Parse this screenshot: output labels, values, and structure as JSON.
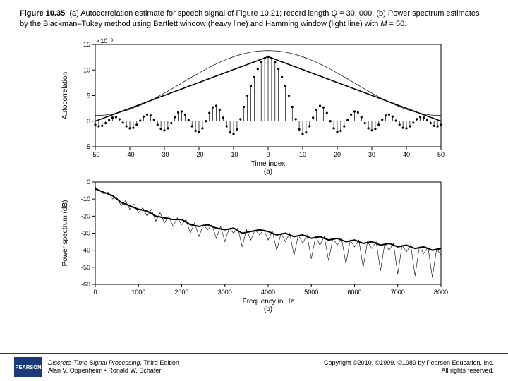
{
  "caption": {
    "label": "Figure 10.35",
    "text_a": "(a) Autocorrelation estimate for speech signal of Figure 10.21; record length ",
    "Q_var": "Q",
    "Q_eq": " = 30, 000. (b) Power spectrum estimates by the Blackman–Tukey method using Bartlett window (heavy line) and Hamming window (light line) with ",
    "M_var": "M",
    "M_eq": " = 50."
  },
  "plot_a": {
    "type": "stem-plus-curves",
    "xlabel": "Time index",
    "sublabel": "(a)",
    "ylabel": "Autocorrelation",
    "y_scale_text": "×10⁻³",
    "xlim": [
      -50,
      50
    ],
    "ylim": [
      -5,
      15
    ],
    "xticks": [
      -50,
      -40,
      -30,
      -20,
      -10,
      0,
      10,
      20,
      30,
      40,
      50
    ],
    "yticks": [
      -5,
      0,
      5,
      10,
      15
    ],
    "background_color": "#ffffff",
    "axis_color": "#000000",
    "stem_color": "#000000",
    "marker_color": "#000000",
    "marker_size": 1.6,
    "hamming_color": "#000000",
    "hamming_width": 0.7,
    "bartlett_color": "#000000",
    "bartlett_width": 1.6,
    "stem_values": [
      -0.7,
      -1.0,
      -0.9,
      -0.4,
      0.2,
      0.7,
      0.8,
      0.4,
      -0.3,
      -1.0,
      -1.4,
      -1.3,
      -0.7,
      0.1,
      0.9,
      1.3,
      1.1,
      0.3,
      -0.7,
      -1.5,
      -1.8,
      -1.4,
      -0.4,
      0.8,
      1.7,
      1.9,
      1.3,
      0.2,
      -1.0,
      -1.9,
      -2.1,
      -1.4,
      0.0,
      1.6,
      2.7,
      3.0,
      2.2,
      0.7,
      -1.0,
      -2.2,
      -2.5,
      -1.6,
      0.4,
      2.8,
      5.0,
      6.9,
      8.6,
      10.2,
      11.5,
      12.3,
      12.6,
      12.3,
      11.5,
      10.2,
      8.6,
      6.9,
      5.0,
      2.8,
      0.4,
      -1.6,
      -2.5,
      -2.2,
      -1.0,
      0.7,
      2.2,
      3.0,
      2.7,
      1.6,
      0.0,
      -1.4,
      -2.1,
      -1.9,
      -1.0,
      0.2,
      1.3,
      1.9,
      1.7,
      0.8,
      -0.4,
      -1.4,
      -1.8,
      -1.5,
      -0.7,
      0.3,
      1.1,
      1.3,
      0.9,
      0.1,
      -0.7,
      -1.3,
      -1.4,
      -1.0,
      -0.3,
      0.4,
      0.8,
      0.7,
      0.2,
      -0.4,
      -0.9,
      -1.0,
      -0.7
    ],
    "bartlett_peak": 12.6,
    "hamming_peak": 13.8
  },
  "plot_b": {
    "type": "line",
    "xlabel": "Frequency in Hz",
    "sublabel": "(b)",
    "ylabel": "Power spectrum (dB)",
    "xlim": [
      0,
      8000
    ],
    "ylim": [
      -60,
      0
    ],
    "xticks": [
      0,
      1000,
      2000,
      3000,
      4000,
      5000,
      6000,
      7000,
      8000
    ],
    "yticks": [
      -60,
      -50,
      -40,
      -30,
      -20,
      -10,
      0
    ],
    "background_color": "#ffffff",
    "axis_color": "#000000",
    "heavy_color": "#000000",
    "heavy_width": 2.0,
    "light_color": "#000000",
    "light_width": 0.6,
    "heavy_points": [
      [
        0,
        -4
      ],
      [
        200,
        -6
      ],
      [
        400,
        -8
      ],
      [
        600,
        -12
      ],
      [
        800,
        -14
      ],
      [
        1000,
        -16
      ],
      [
        1200,
        -17
      ],
      [
        1400,
        -20
      ],
      [
        1600,
        -21
      ],
      [
        1800,
        -22
      ],
      [
        2000,
        -22
      ],
      [
        2200,
        -25
      ],
      [
        2400,
        -26
      ],
      [
        2600,
        -25
      ],
      [
        2800,
        -27
      ],
      [
        3000,
        -28
      ],
      [
        3200,
        -27
      ],
      [
        3400,
        -30
      ],
      [
        3600,
        -29
      ],
      [
        3800,
        -28
      ],
      [
        4000,
        -29
      ],
      [
        4200,
        -31
      ],
      [
        4400,
        -30
      ],
      [
        4600,
        -32
      ],
      [
        4800,
        -31
      ],
      [
        5000,
        -33
      ],
      [
        5200,
        -32
      ],
      [
        5400,
        -34
      ],
      [
        5600,
        -33
      ],
      [
        5800,
        -35
      ],
      [
        6000,
        -34
      ],
      [
        6200,
        -36
      ],
      [
        6400,
        -35
      ],
      [
        6600,
        -37
      ],
      [
        6800,
        -36
      ],
      [
        7000,
        -38
      ],
      [
        7200,
        -37
      ],
      [
        7400,
        -39
      ],
      [
        7600,
        -38
      ],
      [
        7800,
        -40
      ],
      [
        8000,
        -39
      ]
    ],
    "light_points": [
      [
        0,
        -3
      ],
      [
        100,
        -5
      ],
      [
        200,
        -7
      ],
      [
        300,
        -6
      ],
      [
        400,
        -10
      ],
      [
        500,
        -9
      ],
      [
        600,
        -14
      ],
      [
        700,
        -11
      ],
      [
        800,
        -16
      ],
      [
        900,
        -13
      ],
      [
        1000,
        -18
      ],
      [
        1100,
        -15
      ],
      [
        1200,
        -20
      ],
      [
        1300,
        -16
      ],
      [
        1400,
        -23
      ],
      [
        1500,
        -18
      ],
      [
        1600,
        -24
      ],
      [
        1700,
        -20
      ],
      [
        1800,
        -26
      ],
      [
        1900,
        -21
      ],
      [
        2000,
        -25
      ],
      [
        2100,
        -22
      ],
      [
        2200,
        -30
      ],
      [
        2300,
        -24
      ],
      [
        2400,
        -32
      ],
      [
        2500,
        -25
      ],
      [
        2600,
        -28
      ],
      [
        2700,
        -25
      ],
      [
        2800,
        -33
      ],
      [
        2900,
        -26
      ],
      [
        3000,
        -35
      ],
      [
        3100,
        -27
      ],
      [
        3200,
        -30
      ],
      [
        3300,
        -27
      ],
      [
        3400,
        -38
      ],
      [
        3500,
        -28
      ],
      [
        3600,
        -34
      ],
      [
        3700,
        -28
      ],
      [
        3800,
        -31
      ],
      [
        3900,
        -28
      ],
      [
        4000,
        -34
      ],
      [
        4100,
        -29
      ],
      [
        4200,
        -40
      ],
      [
        4300,
        -30
      ],
      [
        4400,
        -35
      ],
      [
        4500,
        -30
      ],
      [
        4600,
        -43
      ],
      [
        4700,
        -31
      ],
      [
        4800,
        -36
      ],
      [
        4900,
        -31
      ],
      [
        5000,
        -45
      ],
      [
        5100,
        -32
      ],
      [
        5200,
        -37
      ],
      [
        5300,
        -32
      ],
      [
        5400,
        -46
      ],
      [
        5500,
        -33
      ],
      [
        5600,
        -37
      ],
      [
        5700,
        -33
      ],
      [
        5800,
        -48
      ],
      [
        5900,
        -34
      ],
      [
        6000,
        -38
      ],
      [
        6100,
        -34
      ],
      [
        6200,
        -50
      ],
      [
        6300,
        -35
      ],
      [
        6400,
        -39
      ],
      [
        6500,
        -35
      ],
      [
        6600,
        -52
      ],
      [
        6700,
        -36
      ],
      [
        6800,
        -40
      ],
      [
        6900,
        -36
      ],
      [
        7000,
        -54
      ],
      [
        7100,
        -37
      ],
      [
        7200,
        -41
      ],
      [
        7300,
        -37
      ],
      [
        7400,
        -55
      ],
      [
        7500,
        -38
      ],
      [
        7600,
        -42
      ],
      [
        7700,
        -38
      ],
      [
        7800,
        -56
      ],
      [
        7900,
        -39
      ],
      [
        8000,
        -43
      ]
    ]
  },
  "footer": {
    "logo_text": "PEARSON",
    "book_title": "Discrete-Time Signal Processing",
    "book_edition": ", Third Edition",
    "authors": "Alan V. Oppenheim • Ronald W. Schafer",
    "copyright_line1": "Copyright ©2010, ©1999, ©1989 by Pearson Education, Inc.",
    "copyright_line2": "All rights reserved."
  }
}
